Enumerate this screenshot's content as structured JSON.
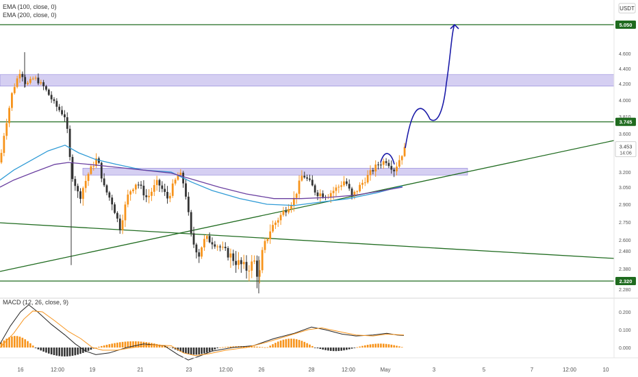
{
  "chart_data": {
    "type": "candlestick",
    "currency_label": "USDT",
    "indicator_legend": [
      "EMA (100, close, 0)",
      "EMA (200, close, 0)"
    ],
    "macd_legend": "MACD (12, 26, close, 9)",
    "price_axis": {
      "ticks": [
        "4.600",
        "4.400",
        "4.200",
        "4.000",
        "3.810",
        "3.600",
        "3.200",
        "3.050",
        "2.900",
        "2.750",
        "2.600",
        "2.480",
        "2.380",
        "2.280"
      ],
      "current_price": "3.453",
      "countdown": "14:06",
      "level_labels": [
        "5.050",
        "3.745",
        "2.320"
      ]
    },
    "macd_axis": {
      "ticks": [
        "0.200",
        "0.100",
        "0.000"
      ]
    },
    "time_axis": [
      "16",
      "12:00",
      "19",
      "21",
      "23",
      "12:00",
      "26",
      "28",
      "12:00",
      "May",
      "3",
      "5",
      "7",
      "12:00",
      "10"
    ],
    "horizontal_levels": [
      5.05,
      3.745,
      2.32
    ],
    "resistance_zone": [
      4.17,
      4.32
    ],
    "support_zone": [
      3.17,
      3.24
    ],
    "projection_target": 5.05,
    "colors": {
      "up": "#f7931a",
      "down": "#333333",
      "ema100": "#2f9bd6",
      "ema200": "#6a3fa0",
      "levels": "#1f6b1f",
      "zone": "#b3a8e8",
      "projection": "#1a1aa8",
      "macd_line": "#222222",
      "signal_line": "#f7931a"
    }
  }
}
